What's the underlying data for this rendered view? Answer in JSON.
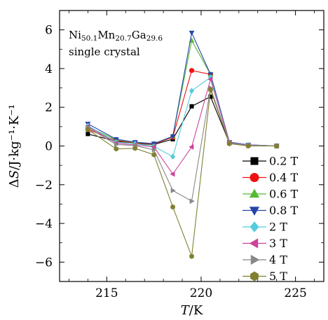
{
  "chart_data": {
    "type": "line",
    "title": "",
    "xlabel": "T/K",
    "ylabel": "ΔS/J·kg⁻¹·K⁻¹",
    "xlim": [
      212.5,
      226.5
    ],
    "ylim": [
      -7,
      7
    ],
    "xticks": [
      215,
      220,
      225
    ],
    "yticks": [
      -6,
      -4,
      -2,
      0,
      2,
      4,
      6
    ],
    "x_tick_labels": [
      "215",
      "220",
      "225"
    ],
    "y_tick_labels": [
      "−6",
      "−4",
      "−2",
      "0",
      "2",
      "4",
      "6"
    ],
    "grid": false,
    "legend_position": "right",
    "annotations": {
      "composition": {
        "parts": [
          {
            "text": "Ni",
            "sub": false
          },
          {
            "text": "50.1",
            "sub": true
          },
          {
            "text": "Mn",
            "sub": false
          },
          {
            "text": "20.7",
            "sub": true
          },
          {
            "text": "Ga",
            "sub": false
          },
          {
            "text": "29.6",
            "sub": true
          }
        ]
      },
      "sample": "single crystal"
    },
    "x": [
      214.0,
      215.5,
      216.5,
      217.5,
      218.5,
      219.5,
      220.5,
      221.5,
      222.5,
      224.0
    ],
    "series": [
      {
        "name": "0.2 T",
        "color": "#000000",
        "marker": "square",
        "values": [
          0.62,
          0.25,
          0.12,
          0.08,
          0.35,
          2.05,
          2.55,
          0.15,
          0.05,
          0.0
        ]
      },
      {
        "name": "0.4 T",
        "color": "#ee1111",
        "marker": "circle",
        "values": [
          0.85,
          0.28,
          0.15,
          0.1,
          0.45,
          3.9,
          3.7,
          0.18,
          0.05,
          0.0
        ]
      },
      {
        "name": "0.6 T",
        "color": "#55bb33",
        "marker": "triangle-up",
        "values": [
          1.0,
          0.32,
          0.18,
          0.12,
          0.5,
          5.45,
          3.7,
          0.2,
          0.06,
          0.0
        ]
      },
      {
        "name": "0.8 T",
        "color": "#2844a8",
        "marker": "triangle-down",
        "values": [
          1.15,
          0.35,
          0.2,
          0.12,
          0.5,
          5.85,
          3.7,
          0.2,
          0.06,
          0.0
        ]
      },
      {
        "name": "2 T",
        "color": "#55ccdd",
        "marker": "diamond",
        "values": [
          1.05,
          0.2,
          0.12,
          -0.02,
          -0.55,
          2.85,
          3.55,
          0.18,
          0.05,
          0.0
        ]
      },
      {
        "name": "3 T",
        "color": "#cc4499",
        "marker": "triangle-left",
        "values": [
          1.0,
          0.15,
          0.05,
          -0.05,
          -1.45,
          -0.05,
          3.45,
          0.17,
          0.04,
          0.0
        ]
      },
      {
        "name": "4 T",
        "color": "#888888",
        "marker": "triangle-right",
        "values": [
          0.95,
          0.08,
          0.02,
          -0.2,
          -2.3,
          -2.85,
          3.0,
          0.15,
          0.02,
          0.0
        ]
      },
      {
        "name": "5 T",
        "color": "#808033",
        "marker": "hexagon",
        "values": [
          0.85,
          -0.15,
          -0.12,
          -0.45,
          -3.15,
          -5.7,
          2.9,
          0.12,
          0.0,
          0.0
        ]
      }
    ]
  }
}
